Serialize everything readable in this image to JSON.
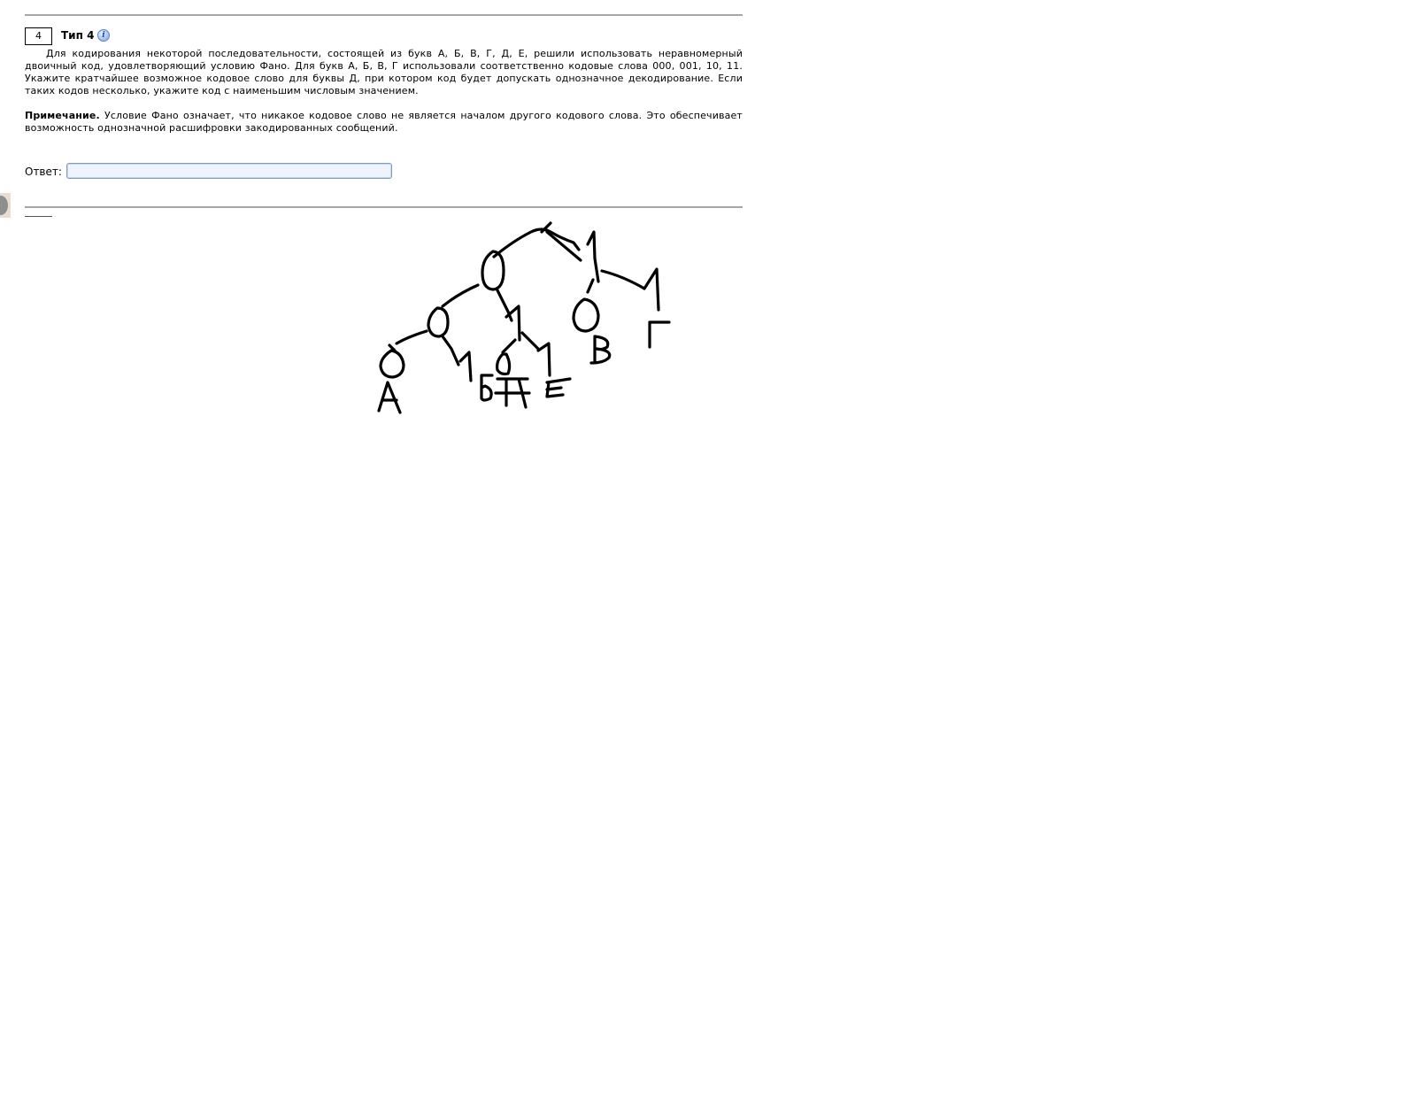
{
  "task": {
    "number": "4",
    "type_label": "Тип 4",
    "info_icon": "info-icon",
    "problem_text": "Для кодирования некоторой последовательности, состоящей из букв А, Б, В, Г, Д, Е, решили использовать неравномерный двоичный код, удовлетворяющий условию Фано. Для букв А, Б, В, Г использовали соответственно кодовые слова 000, 001, 10, 11. Укажите кратчайшее возможное кодовое слово для буквы Д, при котором код будет допускать однозначное декодирование. Если таких кодов несколько, укажите код с наименьшим числовым значением.",
    "note_label": "Примечание.",
    "note_text": "Условие Фано означает, что никакое кодовое слово не является началом другого кодового слова. Это обеспечивает возможность однозначной расшифровки закодированных сообщений.",
    "answer_label": "Ответ:",
    "answer_value": ""
  },
  "sketch": {
    "description_icon": "hand-drawn-code-tree"
  }
}
